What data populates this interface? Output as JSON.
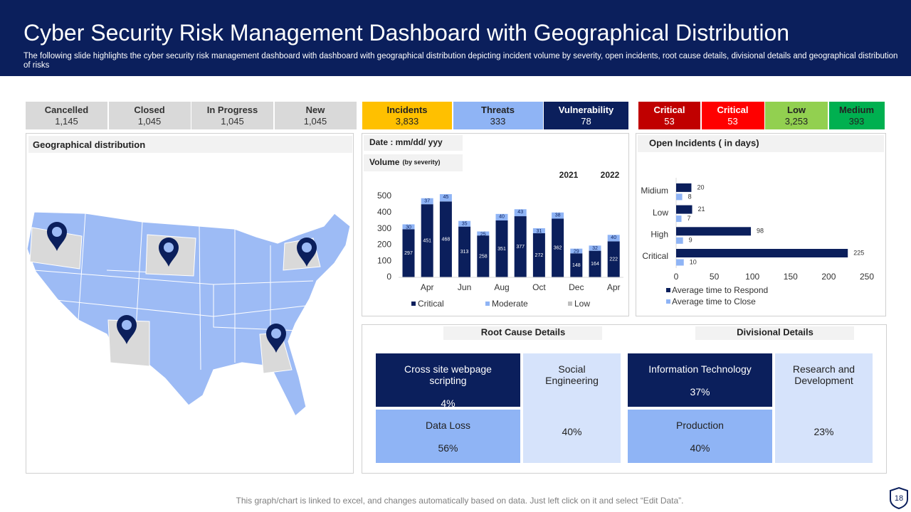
{
  "header": {
    "title": "Cyber Security Risk Management Dashboard with Geographical Distribution",
    "subtitle": "The following slide highlights the cyber security risk management dashboard with dashboard with geographical distribution depicting incident volume by severity, open incidents, root cause details, divisional details and geographical distribution of risks"
  },
  "status_cards": [
    {
      "label": "Cancelled",
      "value": "1,145"
    },
    {
      "label": "Closed",
      "value": "1,045"
    },
    {
      "label": "In Progress",
      "value": "1,045"
    },
    {
      "label": "New",
      "value": "1,045"
    }
  ],
  "type_cards": [
    {
      "label": "Incidents",
      "value": "3,833"
    },
    {
      "label": "Threats",
      "value": "333"
    },
    {
      "label": "Vulnerability",
      "value": "78"
    }
  ],
  "severity_cards": [
    {
      "label": "Critical",
      "value": "53"
    },
    {
      "label": "Critical",
      "value": "53"
    },
    {
      "label": "Low",
      "value": "3,253"
    },
    {
      "label": "Medium",
      "value": "393"
    }
  ],
  "geo": {
    "title": "Geographical distribution"
  },
  "chart_data": [
    {
      "type": "stacked_bar",
      "date_label": "Date : mm/dd/ yyy",
      "volume_label": "Volume",
      "volume_note": "(by severity)",
      "year_labels": [
        "2021",
        "2022"
      ],
      "categories": [
        null,
        "Apr",
        null,
        "Jun",
        null,
        "Aug",
        null,
        "Oct",
        null,
        "Dec",
        null,
        "Apr"
      ],
      "series": [
        {
          "name": "Critical",
          "color": "#0b1f5c",
          "values": [
            297,
            451,
            468,
            313,
            258,
            351,
            377,
            272,
            362,
            148,
            164,
            222
          ]
        },
        {
          "name": "Moderate",
          "color": "#8fb4f5",
          "values": [
            30,
            37,
            45,
            35,
            25,
            40,
            43,
            31,
            38,
            29,
            32,
            40
          ]
        },
        {
          "name": "Low",
          "color": "#bfbfbf",
          "values": [
            0,
            0,
            0,
            0,
            0,
            0,
            0,
            0,
            0,
            0,
            0,
            0
          ]
        }
      ],
      "ylim": [
        0,
        500
      ],
      "yticks": [
        0,
        100,
        200,
        300,
        400,
        500
      ]
    },
    {
      "type": "hbar",
      "title": "Open Incidents ( in days)",
      "categories": [
        "Critical",
        "High",
        "Low",
        "Midium"
      ],
      "series": [
        {
          "name": "Average time to Respond",
          "color": "#0b1f5c",
          "values": [
            225,
            98,
            21,
            20
          ]
        },
        {
          "name": "Average time to Close",
          "color": "#8fb4f5",
          "values": [
            10,
            9,
            7,
            8
          ]
        }
      ],
      "xlim": [
        0,
        250
      ],
      "xticks": [
        0,
        50,
        100,
        150,
        200,
        250
      ]
    }
  ],
  "root_cause": {
    "title": "Root Cause Details",
    "items": [
      {
        "label": "Cross site webpage scripting",
        "value": "4%"
      },
      {
        "label": "Data Loss",
        "value": "56%"
      },
      {
        "label": "Social Engineering",
        "value": "40%"
      }
    ]
  },
  "divisional": {
    "title": "Divisional Details",
    "items": [
      {
        "label": "Information Technology",
        "value": "37%"
      },
      {
        "label": "Production",
        "value": "40%"
      },
      {
        "label": "Research and Development",
        "value": "23%"
      }
    ]
  },
  "footer": "This graph/chart is linked to excel, and changes automatically based on data. Just left click on it and select “Edit Data”.",
  "page_number": "18"
}
